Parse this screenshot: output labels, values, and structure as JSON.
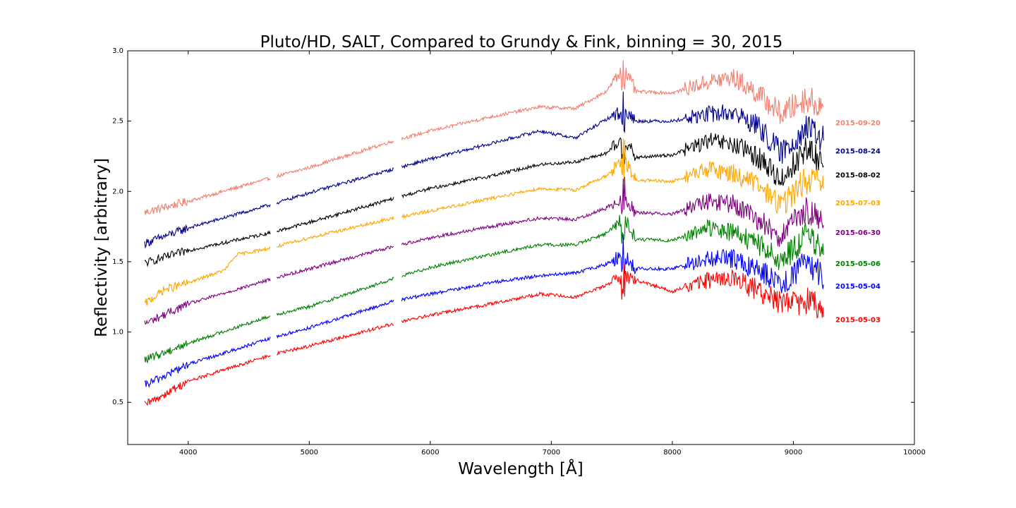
{
  "chart_data": {
    "type": "line",
    "title": "Pluto/HD, SALT, Compared to Grundy & Fink, binning = 30, 2015",
    "xlabel": "Wavelength [Å]",
    "ylabel": "Reflectivity [arbitrary]",
    "xlim": [
      3500,
      10000
    ],
    "ylim": [
      0.2,
      3.0
    ],
    "xticks": [
      4000,
      5000,
      6000,
      7000,
      8000,
      9000,
      10000
    ],
    "yticks": [
      0.5,
      1.0,
      1.5,
      2.0,
      2.5,
      3.0
    ],
    "xtick_labels": [
      "4000",
      "5000",
      "6000",
      "7000",
      "8000",
      "9000",
      "10000"
    ],
    "ytick_labels": [
      "0.5",
      "1.0",
      "1.5",
      "2.0",
      "2.5",
      "3.0"
    ],
    "grid": false,
    "legend_placement": "right, labels next to curves",
    "series": [
      {
        "name": "2015-09-20",
        "color": "#f08070",
        "offset": 0.8,
        "x": [
          3640,
          4000,
          4700,
          5000,
          5700,
          6000,
          6500,
          6900,
          7200,
          7450,
          7600,
          7700,
          8000,
          8300,
          8500,
          8700,
          8900,
          9100,
          9250
        ],
        "y": [
          1.85,
          1.93,
          2.1,
          2.17,
          2.36,
          2.43,
          2.53,
          2.6,
          2.59,
          2.71,
          2.87,
          2.71,
          2.7,
          2.78,
          2.81,
          2.7,
          2.55,
          2.66,
          2.6
        ]
      },
      {
        "name": "2015-08-24",
        "color": "#00008b",
        "offset": 0.65,
        "x": [
          3640,
          4000,
          4700,
          5000,
          5700,
          6000,
          6500,
          6900,
          7200,
          7450,
          7600,
          7700,
          8000,
          8300,
          8500,
          8700,
          8900,
          9100,
          9250
        ],
        "y": [
          1.63,
          1.74,
          1.91,
          1.99,
          2.16,
          2.23,
          2.34,
          2.43,
          2.38,
          2.51,
          2.58,
          2.5,
          2.5,
          2.55,
          2.56,
          2.47,
          2.27,
          2.45,
          2.37
        ]
      },
      {
        "name": "2015-08-02",
        "color": "#000000",
        "offset": 0.5,
        "x": [
          3640,
          4000,
          4700,
          5000,
          5700,
          6000,
          6500,
          6900,
          7200,
          7450,
          7600,
          7700,
          8000,
          8300,
          8500,
          8700,
          8900,
          9100,
          9250
        ],
        "y": [
          1.49,
          1.58,
          1.71,
          1.78,
          1.95,
          2.02,
          2.11,
          2.19,
          2.21,
          2.27,
          2.37,
          2.24,
          2.26,
          2.36,
          2.33,
          2.25,
          2.08,
          2.3,
          2.2
        ]
      },
      {
        "name": "2015-07-03",
        "color": "#ffa500",
        "offset": 0.35,
        "x": [
          3640,
          3800,
          4000,
          4300,
          4400,
          4700,
          5000,
          5700,
          6000,
          6500,
          6900,
          7200,
          7450,
          7600,
          7700,
          8000,
          8300,
          8500,
          8700,
          8900,
          9100,
          9250
        ],
        "y": [
          1.2,
          1.3,
          1.35,
          1.44,
          1.55,
          1.6,
          1.67,
          1.81,
          1.86,
          1.95,
          2.02,
          2.01,
          2.11,
          2.22,
          2.08,
          2.07,
          2.16,
          2.13,
          2.05,
          1.9,
          2.08,
          2.05
        ]
      },
      {
        "name": "2015-06-30",
        "color": "#800080",
        "offset": 0.2,
        "x": [
          3640,
          4000,
          4700,
          5000,
          5700,
          6000,
          6500,
          6900,
          7200,
          7450,
          7600,
          7700,
          8000,
          8300,
          8500,
          8700,
          8900,
          9100,
          9250
        ],
        "y": [
          1.06,
          1.2,
          1.38,
          1.45,
          1.61,
          1.67,
          1.75,
          1.81,
          1.8,
          1.88,
          1.97,
          1.85,
          1.84,
          1.93,
          1.91,
          1.8,
          1.68,
          1.86,
          1.8
        ]
      },
      {
        "name": "2015-05-06",
        "color": "#008000",
        "offset": 0.05,
        "x": [
          3640,
          4000,
          4700,
          5000,
          5700,
          6000,
          6500,
          6900,
          7200,
          7450,
          7600,
          7700,
          8000,
          8300,
          8500,
          8700,
          8900,
          9100,
          9250
        ],
        "y": [
          0.8,
          0.92,
          1.12,
          1.18,
          1.38,
          1.46,
          1.55,
          1.62,
          1.62,
          1.7,
          1.81,
          1.66,
          1.65,
          1.74,
          1.71,
          1.63,
          1.5,
          1.68,
          1.6
        ]
      },
      {
        "name": "2015-05-04",
        "color": "#0000ff",
        "offset": -0.1,
        "x": [
          3640,
          4000,
          4700,
          5000,
          5700,
          6000,
          6500,
          6900,
          7200,
          7450,
          7600,
          7700,
          8000,
          8300,
          8500,
          8700,
          8900,
          9100,
          9250
        ],
        "y": [
          0.62,
          0.77,
          0.96,
          1.03,
          1.22,
          1.27,
          1.35,
          1.4,
          1.42,
          1.48,
          1.55,
          1.45,
          1.45,
          1.52,
          1.52,
          1.45,
          1.35,
          1.48,
          1.4
        ]
      },
      {
        "name": "2015-05-03",
        "color": "#ff0000",
        "offset": -0.25,
        "x": [
          3640,
          4000,
          4700,
          5000,
          5700,
          6000,
          6500,
          6900,
          7200,
          7450,
          7600,
          7700,
          8000,
          8300,
          8500,
          8700,
          8900,
          9100,
          9250
        ],
        "y": [
          0.48,
          0.65,
          0.84,
          0.9,
          1.06,
          1.12,
          1.2,
          1.27,
          1.25,
          1.33,
          1.4,
          1.37,
          1.29,
          1.37,
          1.38,
          1.3,
          1.2,
          1.22,
          1.18
        ]
      }
    ]
  }
}
